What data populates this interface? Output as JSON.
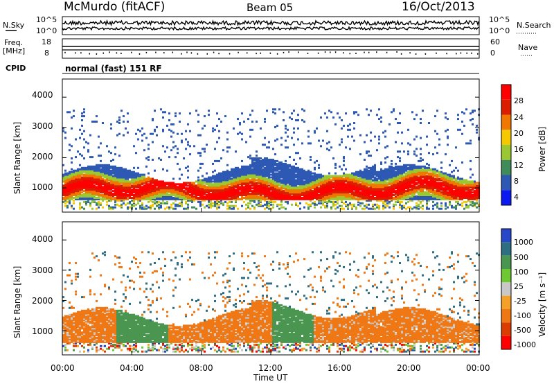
{
  "header": {
    "station": "McMurdo (fitACF)",
    "beam": "Beam 05",
    "date": "16/Oct/2013"
  },
  "strip_noise": {
    "left_label": "N.Sky",
    "right_label": "N.Search",
    "left_ticks": [
      "10^5",
      "10^0"
    ],
    "right_ticks": [
      "10^5",
      "10^0"
    ]
  },
  "strip_freq": {
    "left_label_1": "Freq.",
    "left_label_2": "[MHz]",
    "right_label": "Nave",
    "left_ticks": [
      "18",
      "8"
    ],
    "right_ticks": [
      "60",
      "0"
    ]
  },
  "strip_cpid": {
    "label": "CPID",
    "text": "normal (fast) 151 RF"
  },
  "chart_data": [
    {
      "type": "heatmap",
      "name": "power",
      "ylabel": "Slant Range [km]",
      "y_ticks": [
        "1000",
        "2000",
        "3000",
        "4000"
      ],
      "ylim": [
        200,
        4600
      ],
      "colorbar": {
        "label": "Power [dB]",
        "ticks": [
          "4",
          "8",
          "12",
          "16",
          "20",
          "24",
          "28"
        ],
        "colors": [
          "#0a1af0",
          "#2d58b4",
          "#3f8c5a",
          "#9bc832",
          "#f5c800",
          "#f07800",
          "#dc1e00",
          "#ff0000"
        ]
      }
    },
    {
      "type": "heatmap",
      "name": "velocity",
      "ylabel": "Slant Range [km]",
      "y_ticks": [
        "1000",
        "2000",
        "3000",
        "4000"
      ],
      "ylim": [
        200,
        4600
      ],
      "colorbar": {
        "label": "Velocity [m s⁻¹]",
        "ticks": [
          "1000",
          "500",
          "100",
          "25",
          "-25",
          "-100",
          "-500",
          "-1000"
        ],
        "colors": [
          "#2846c8",
          "#2d6e82",
          "#4a9650",
          "#6ec832",
          "#c8c8c8",
          "#f5a028",
          "#f07814",
          "#dc3c00",
          "#ff0000"
        ]
      }
    }
  ],
  "x_axis": {
    "label": "Time UT",
    "ticks": [
      "00:00",
      "04:00",
      "08:00",
      "12:00",
      "16:00",
      "20:00",
      "00:00"
    ]
  }
}
